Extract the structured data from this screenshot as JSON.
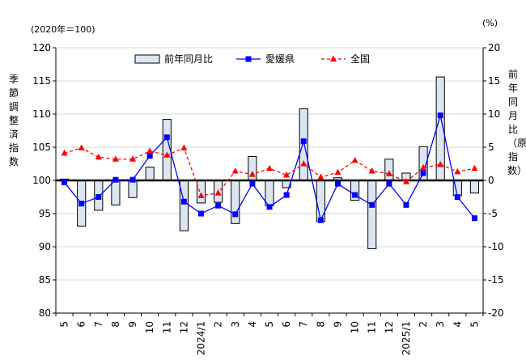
{
  "chart_data": {
    "type": "bar+line",
    "left_axis_unit": "(2020年＝100)",
    "right_axis_unit": "(%)",
    "left_axis_title": "季節調整済指数",
    "right_axis_title": "前年同月比（原指数）",
    "left_ylim": [
      80,
      120
    ],
    "left_ticks": [
      "80",
      "85",
      "90",
      "95",
      "100",
      "105",
      "110",
      "115",
      "120"
    ],
    "right_ylim": [
      -20,
      20
    ],
    "right_ticks": [
      "-20",
      "-15",
      "-10",
      "-5",
      "0",
      "5",
      "10",
      "15",
      "20"
    ],
    "legend_position": "top",
    "categories": [
      "5",
      "6",
      "7",
      "8",
      "9",
      "10",
      "11",
      "12",
      "2024/1",
      "2",
      "3",
      "4",
      "5",
      "6",
      "7",
      "8",
      "9",
      "10",
      "11",
      "12",
      "2025/1",
      "2",
      "3",
      "4",
      "5"
    ],
    "series": [
      {
        "name": "前年同月比",
        "kind": "bar",
        "axis": "right",
        "fill": "#dce6f2",
        "stroke": "#000000",
        "values": [
          0.2,
          -6.9,
          -4.5,
          -3.7,
          -2.6,
          2.0,
          9.2,
          -7.6,
          -3.4,
          -3.3,
          -6.5,
          3.6,
          -3.8,
          -1.1,
          10.8,
          -6.2,
          0.4,
          -3.0,
          -10.3,
          3.2,
          1.1,
          5.1,
          15.6,
          -2.3,
          -1.9
        ]
      },
      {
        "name": "愛媛県",
        "kind": "line",
        "axis": "left",
        "color": "#0000ff",
        "dash": "solid",
        "marker": "square",
        "values": [
          99.7,
          96.5,
          97.5,
          100.1,
          100.1,
          103.7,
          106.5,
          96.8,
          95.0,
          96.2,
          94.9,
          99.5,
          96.0,
          97.8,
          105.9,
          94.0,
          99.5,
          97.8,
          96.3,
          99.5,
          96.3,
          101.1,
          109.8,
          97.5,
          94.3
        ]
      },
      {
        "name": "全国",
        "kind": "line",
        "axis": "left",
        "color": "#ff0000",
        "dash": "dashed",
        "marker": "triangle",
        "values": [
          104.1,
          104.9,
          103.5,
          103.2,
          103.2,
          104.4,
          103.8,
          104.9,
          97.7,
          98.1,
          101.4,
          100.9,
          101.8,
          100.8,
          102.5,
          100.5,
          101.2,
          103.0,
          101.4,
          101.0,
          99.8,
          101.9,
          102.4,
          101.3,
          101.8
        ]
      }
    ]
  }
}
